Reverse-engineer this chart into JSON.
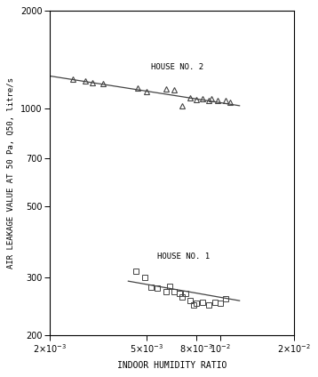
{
  "house2_x": [
    0.0025,
    0.0028,
    0.003,
    0.0033,
    0.0046,
    0.005,
    0.006,
    0.0065,
    0.007,
    0.0075,
    0.008,
    0.0085,
    0.009,
    0.0092,
    0.0098,
    0.0105,
    0.011
  ],
  "house2_y": [
    1230,
    1215,
    1200,
    1195,
    1160,
    1130,
    1150,
    1140,
    1020,
    1080,
    1065,
    1070,
    1060,
    1070,
    1060,
    1060,
    1045
  ],
  "house2_line_x": [
    0.002,
    0.012
  ],
  "house2_line_y": [
    1260,
    1020
  ],
  "house1_x": [
    0.0045,
    0.0049,
    0.0052,
    0.0055,
    0.006,
    0.0062,
    0.0065,
    0.0068,
    0.007,
    0.0072,
    0.0075,
    0.0078,
    0.008,
    0.0085,
    0.009,
    0.0095,
    0.01,
    0.0105
  ],
  "house1_y": [
    315,
    300,
    280,
    278,
    272,
    282,
    272,
    268,
    262,
    268,
    255,
    248,
    250,
    252,
    248,
    252,
    250,
    258
  ],
  "house1_line_x": [
    0.0042,
    0.012
  ],
  "house1_line_y": [
    293,
    255
  ],
  "xlim": [
    0.002,
    0.02
  ],
  "ylim": [
    200,
    2000
  ],
  "xlabel": "INDOOR HUMIDITY RATIO",
  "ylabel": "AIR LEAKAGE VALUE AT 50 Pa, Q50, litre/s",
  "house2_label": "HOUSE NO. 2",
  "house1_label": "HOUSE NO. 1",
  "yticks_major": [
    200,
    500,
    700,
    1000,
    2000
  ],
  "ytick_labels": [
    "200",
    "500",
    "700",
    "1000",
    "2000"
  ],
  "xticks": [
    0.002,
    0.005,
    0.008,
    0.01,
    0.02
  ],
  "background_color": "#ffffff",
  "plot_bg_color": "#ffffff",
  "line_color": "#444444",
  "marker_color": "#444444"
}
